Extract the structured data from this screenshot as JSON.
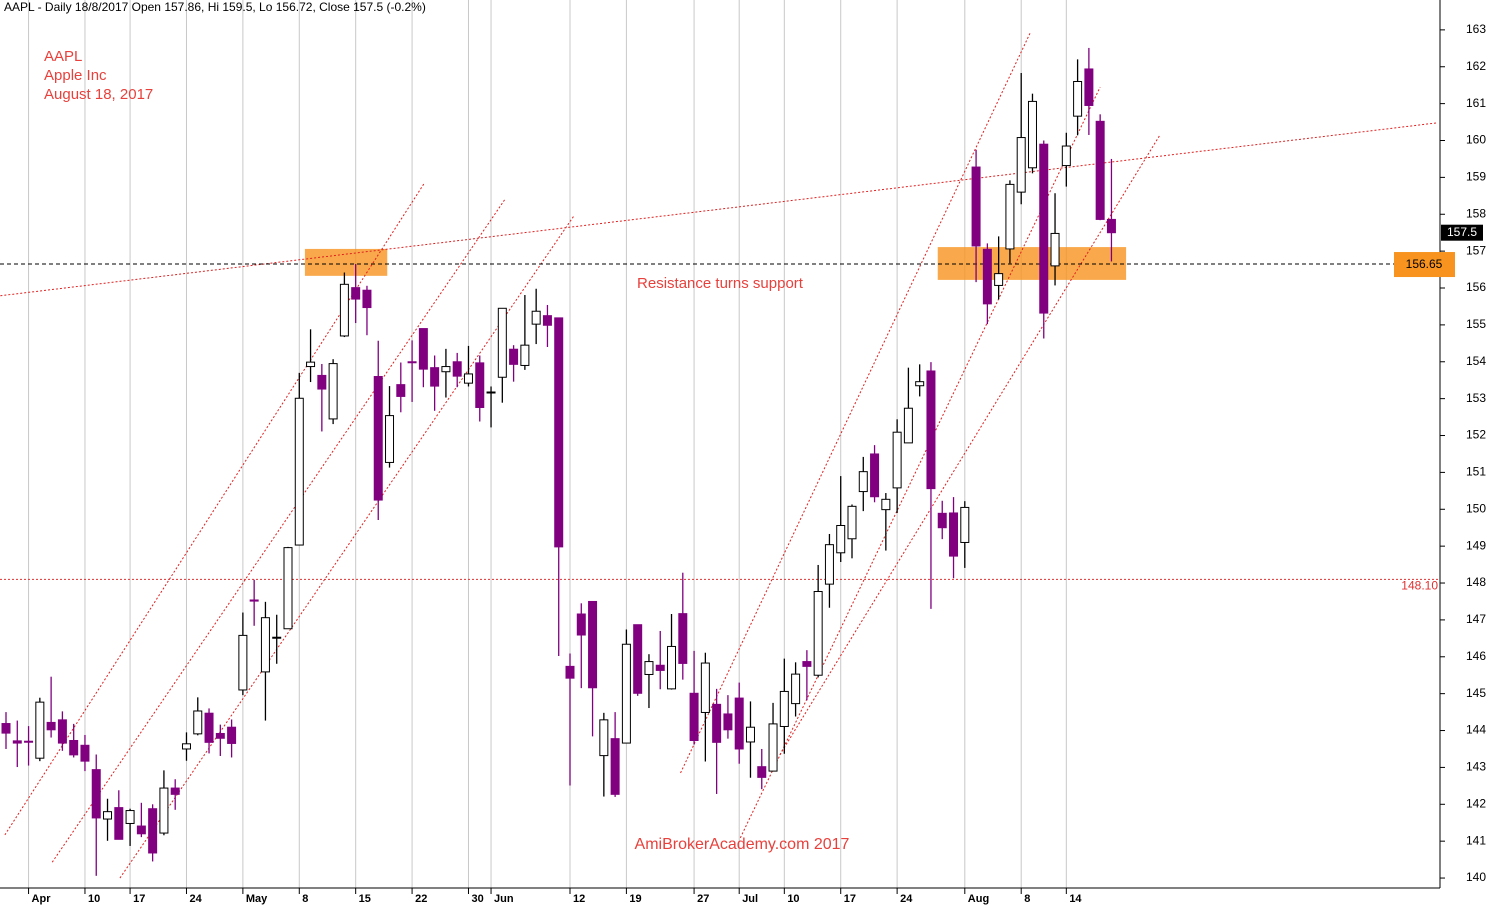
{
  "chart_data": {
    "type": "candlestick",
    "header": "AAPL - Daily 18/8/2017 Open 157.86, Hi 159.5, Lo 156.72, Close 157.5 (-0.2%)",
    "annotations": [
      "AAPL",
      "Apple Inc",
      "August 18, 2017",
      "Resistance turns support",
      "AmiBrokerAcademy.com  2017"
    ],
    "categories": [
      null,
      null,
      "Apr",
      null,
      null,
      null,
      null,
      "10",
      null,
      null,
      null,
      "17",
      null,
      null,
      null,
      null,
      "24",
      null,
      null,
      null,
      null,
      "May",
      null,
      null,
      null,
      null,
      "8",
      null,
      null,
      null,
      null,
      "15",
      null,
      null,
      null,
      null,
      "22",
      null,
      null,
      null,
      null,
      "30",
      null,
      "Jun",
      null,
      null,
      null,
      null,
      null,
      null,
      "12",
      null,
      null,
      null,
      null,
      "19",
      null,
      null,
      null,
      null,
      null,
      "27",
      null,
      null,
      null,
      "Jul",
      null,
      null,
      null,
      "10",
      null,
      null,
      null,
      null,
      "17",
      null,
      null,
      null,
      null,
      "24",
      null,
      null,
      null,
      null,
      null,
      "Aug",
      null,
      null,
      null,
      null,
      "8",
      null,
      null,
      null,
      "14",
      null,
      null,
      null,
      null
    ],
    "open": [
      144.19,
      143.72,
      143.71,
      143.25,
      144.22,
      144.29,
      143.73,
      143.6,
      142.94,
      141.6,
      141.91,
      141.48,
      141.41,
      141.88,
      141.22,
      142.44,
      143.5,
      143.91,
      144.47,
      143.92,
      144.09,
      145.1,
      147.54,
      145.59,
      146.52,
      146.76,
      149.03,
      153.87,
      153.63,
      152.45,
      154.7,
      156.01,
      155.94,
      153.6,
      151.27,
      153.38,
      154.0,
      154.9,
      153.84,
      153.73,
      154.0,
      153.42,
      153.97,
      153.17,
      153.58,
      154.34,
      153.9,
      155.02,
      155.25,
      155.19,
      145.74,
      147.16,
      147.5,
      143.32,
      143.78,
      143.66,
      146.87,
      145.52,
      145.77,
      145.13,
      147.17,
      145.01,
      144.49,
      144.71,
      144.45,
      144.88,
      143.69,
      143.02,
      142.9,
      144.11,
      144.73,
      145.87,
      145.5,
      147.97,
      148.82,
      149.2,
      150.48,
      151.5,
      149.99,
      150.58,
      151.8,
      153.35,
      153.75,
      149.89,
      149.9,
      149.1,
      159.28,
      157.05,
      156.07,
      157.06,
      158.6,
      159.26,
      159.9,
      156.6,
      159.32,
      160.66,
      161.94,
      160.52,
      157.86
    ],
    "high": [
      144.5,
      144.27,
      144.12,
      144.89,
      145.46,
      144.52,
      144.18,
      143.88,
      143.35,
      142.15,
      142.38,
      141.88,
      142.04,
      142.0,
      142.92,
      142.68,
      143.95,
      144.9,
      144.6,
      144.16,
      144.3,
      147.2,
      148.09,
      147.49,
      147.14,
      148.98,
      153.7,
      154.88,
      153.94,
      154.07,
      156.42,
      156.65,
      156.06,
      154.57,
      153.34,
      153.98,
      154.58,
      154.9,
      154.17,
      154.35,
      154.24,
      154.43,
      154.17,
      153.33,
      155.45,
      154.45,
      155.81,
      155.98,
      155.54,
      155.19,
      146.09,
      147.45,
      147.5,
      144.48,
      144.5,
      146.74,
      146.87,
      146.07,
      146.7,
      147.16,
      148.28,
      146.16,
      146.11,
      145.13,
      144.96,
      145.3,
      144.79,
      143.5,
      144.75,
      145.95,
      145.85,
      146.18,
      148.49,
      149.33,
      150.9,
      150.13,
      151.42,
      151.74,
      150.44,
      152.44,
      153.84,
      153.93,
      153.99,
      150.23,
      150.33,
      150.22,
      159.75,
      157.21,
      157.4,
      158.92,
      161.83,
      161.27,
      160.0,
      158.57,
      160.21,
      162.2,
      162.51,
      160.71,
      159.5
    ],
    "low": [
      143.5,
      143.01,
      143.05,
      143.17,
      143.81,
      143.45,
      143.27,
      142.9,
      140.06,
      141.01,
      141.05,
      140.87,
      141.11,
      140.45,
      141.16,
      141.85,
      143.18,
      143.87,
      143.38,
      143.31,
      143.27,
      144.96,
      146.84,
      144.27,
      145.81,
      146.76,
      149.03,
      153.45,
      152.11,
      152.31,
      154.67,
      155.05,
      154.72,
      149.71,
      151.13,
      152.63,
      152.91,
      153.31,
      152.67,
      153.03,
      153.31,
      153.33,
      152.38,
      152.22,
      152.89,
      153.46,
      153.78,
      154.48,
      154.4,
      146.02,
      142.51,
      145.15,
      143.84,
      142.21,
      142.2,
      143.66,
      144.94,
      144.61,
      145.12,
      145.11,
      145.38,
      143.62,
      143.16,
      142.28,
      143.78,
      143.1,
      142.72,
      142.41,
      142.9,
      143.37,
      144.38,
      144.82,
      145.44,
      147.33,
      148.57,
      148.67,
      149.95,
      150.19,
      148.88,
      149.9,
      151.8,
      153.06,
      147.3,
      149.19,
      148.13,
      148.41,
      156.16,
      155.02,
      155.69,
      156.67,
      158.27,
      159.11,
      154.63,
      156.07,
      158.75,
      160.14,
      160.15,
      157.84,
      156.72
    ],
    "close": [
      143.93,
      143.66,
      143.7,
      144.77,
      144.02,
      143.66,
      143.34,
      143.17,
      141.63,
      141.8,
      141.05,
      141.83,
      141.2,
      140.68,
      142.44,
      142.27,
      143.64,
      144.53,
      143.68,
      143.79,
      143.65,
      146.58,
      147.51,
      147.06,
      146.53,
      148.96,
      153.01,
      153.99,
      153.26,
      153.95,
      156.1,
      155.7,
      155.47,
      150.25,
      152.54,
      153.06,
      153.99,
      153.8,
      153.34,
      153.87,
      153.61,
      153.67,
      152.76,
      153.18,
      155.45,
      153.93,
      154.45,
      155.37,
      154.99,
      148.98,
      145.42,
      146.59,
      145.16,
      144.29,
      142.27,
      146.34,
      145.01,
      145.87,
      145.63,
      146.28,
      145.82,
      143.73,
      145.83,
      143.68,
      144.02,
      143.5,
      144.09,
      142.73,
      144.18,
      145.06,
      145.53,
      145.74,
      147.77,
      149.04,
      149.56,
      150.08,
      151.02,
      150.34,
      150.27,
      152.09,
      152.74,
      153.46,
      150.56,
      149.5,
      148.73,
      150.05,
      157.14,
      155.57,
      156.39,
      158.81,
      160.08,
      161.06,
      155.32,
      157.48,
      159.85,
      161.6,
      160.95,
      157.86,
      157.5
    ],
    "up_color": "#ffffff",
    "down_color": "#800080",
    "ylim": [
      139.73,
      163.81
    ],
    "yticks": [
      140,
      141,
      142,
      143,
      144,
      145,
      146,
      147,
      148,
      149,
      150,
      151,
      152,
      153,
      154,
      155,
      156,
      157,
      158,
      159,
      160,
      161,
      162,
      163
    ],
    "levels": [
      {
        "value": 156.65,
        "color": "#000000"
      },
      {
        "value": 148.1,
        "label": "148.10",
        "color": "#e03030"
      }
    ],
    "zones": [
      {
        "x": [
          26.5,
          33.8
        ],
        "y": [
          156.33,
          157.06
        ]
      },
      {
        "x": [
          82.6,
          99.3
        ],
        "y": [
          156.22,
          157.11
        ]
      }
    ],
    "zone_color": "#f7931e",
    "trendline_color": "#e02020",
    "trendlines": [
      [
        [
          -0.5,
          155.79
        ],
        [
          126.9,
          160.48
        ]
      ],
      [
        [
          -0.1,
          141.17
        ],
        [
          37.1,
          158.85
        ]
      ],
      [
        [
          4.1,
          140.43
        ],
        [
          44.2,
          158.39
        ]
      ],
      [
        [
          10.1,
          140.0
        ],
        [
          50.4,
          157.98
        ]
      ],
      [
        [
          59.8,
          142.85
        ],
        [
          90.8,
          162.92
        ]
      ],
      [
        [
          65.1,
          141.09
        ],
        [
          97.0,
          161.45
        ]
      ],
      [
        [
          68.6,
          143.34
        ],
        [
          102.3,
          160.15
        ]
      ]
    ]
  }
}
